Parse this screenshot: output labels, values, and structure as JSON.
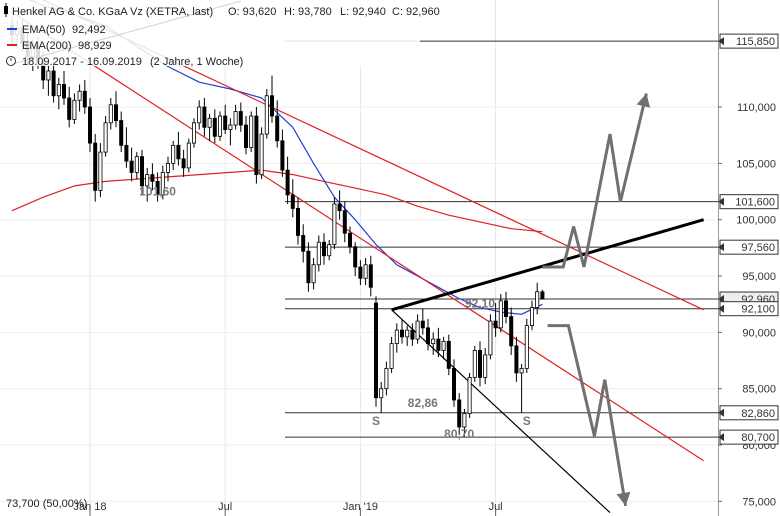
{
  "header": {
    "title": "Henkel AG & Co. KGaA Vz (XETRA, last)",
    "open": "O: 93,620",
    "high": "H: 93,780",
    "low": "L: 92,940",
    "close": "C: 92,960",
    "ema50_label": "EMA(50)",
    "ema50_value": "92,492",
    "ema200_label": "EMA(200)",
    "ema200_value": "98,929",
    "range_label": "18.09.2017 - 16.09.2019",
    "range_duration": "(2 Jahre, 1 Woche)"
  },
  "footer": {
    "scale_label": "73,700 (50,00%)"
  },
  "colors": {
    "ema50": "#1f3fd6",
    "ema200": "#e02020",
    "trend_red": "#e02020",
    "candle": "#000000",
    "projection": "#707070",
    "level_line": "#333333"
  },
  "chart_data": {
    "type": "candlestick",
    "title": "Henkel AG & Co. KGaA Vz (XETRA, last)",
    "ylim": [
      73.7,
      119.5
    ],
    "y_ticks": [
      {
        "value": 75,
        "label": "75,000"
      },
      {
        "value": 80,
        "label": "80,000"
      },
      {
        "value": 85,
        "label": "85,000"
      },
      {
        "value": 90,
        "label": "90,000"
      },
      {
        "value": 95,
        "label": "95,000"
      },
      {
        "value": 100,
        "label": "100,000"
      },
      {
        "value": 105,
        "label": "105,000"
      },
      {
        "value": 110,
        "label": "110,000"
      }
    ],
    "x_ticks": [
      {
        "week": 15,
        "label": "Jan 18"
      },
      {
        "week": 41,
        "label": "Jul"
      },
      {
        "week": 67,
        "label": "Jan '19"
      },
      {
        "week": 93,
        "label": "Jul"
      }
    ],
    "price_levels": [
      {
        "value": 115.85,
        "label": "115,850"
      },
      {
        "value": 101.6,
        "label": "101,600"
      },
      {
        "value": 97.56,
        "label": "97,560"
      },
      {
        "value": 92.96,
        "label": "92,960",
        "current": true
      },
      {
        "value": 92.1,
        "label": "92,100"
      },
      {
        "value": 82.86,
        "label": "82,860"
      },
      {
        "value": 80.7,
        "label": "80,700"
      }
    ],
    "annotations": [
      {
        "text": "101,60",
        "week": 28,
        "value": 101.6
      },
      {
        "text": "92,10",
        "week": 90,
        "value": 92.1
      },
      {
        "text": "82,86",
        "week": 79,
        "value": 82.86
      },
      {
        "text": "80,70",
        "week": 86,
        "value": 80.7
      },
      {
        "text": "S",
        "week": 70,
        "value": 82.86
      },
      {
        "text": "S",
        "week": 99,
        "value": 82.86
      }
    ],
    "candles": [
      {
        "o": 117.2,
        "h": 118.0,
        "l": 115.5,
        "c": 116.4
      },
      {
        "o": 116.4,
        "h": 117.6,
        "l": 115.2,
        "c": 117.0
      },
      {
        "o": 117.0,
        "h": 117.8,
        "l": 115.0,
        "c": 115.6
      },
      {
        "o": 115.6,
        "h": 116.6,
        "l": 113.8,
        "c": 114.5
      },
      {
        "o": 114.5,
        "h": 116.0,
        "l": 113.2,
        "c": 115.4
      },
      {
        "o": 115.4,
        "h": 116.2,
        "l": 113.4,
        "c": 113.9
      },
      {
        "o": 113.9,
        "h": 115.0,
        "l": 111.6,
        "c": 112.4
      },
      {
        "o": 112.4,
        "h": 113.8,
        "l": 111.0,
        "c": 113.2
      },
      {
        "o": 113.2,
        "h": 114.0,
        "l": 110.4,
        "c": 111.0
      },
      {
        "o": 111.0,
        "h": 112.6,
        "l": 109.8,
        "c": 112.0
      },
      {
        "o": 112.0,
        "h": 113.2,
        "l": 110.2,
        "c": 110.8
      },
      {
        "o": 110.8,
        "h": 111.8,
        "l": 108.2,
        "c": 108.9
      },
      {
        "o": 108.9,
        "h": 111.2,
        "l": 108.5,
        "c": 110.6
      },
      {
        "o": 110.6,
        "h": 112.0,
        "l": 109.6,
        "c": 111.4
      },
      {
        "o": 111.4,
        "h": 112.4,
        "l": 109.4,
        "c": 110.0
      },
      {
        "o": 110.0,
        "h": 110.8,
        "l": 106.0,
        "c": 106.8
      },
      {
        "o": 106.8,
        "h": 107.6,
        "l": 101.6,
        "c": 102.6
      },
      {
        "o": 102.6,
        "h": 106.8,
        "l": 102.0,
        "c": 106.0
      },
      {
        "o": 106.0,
        "h": 109.2,
        "l": 105.6,
        "c": 108.6
      },
      {
        "o": 108.6,
        "h": 110.8,
        "l": 108.0,
        "c": 110.2
      },
      {
        "o": 110.2,
        "h": 111.4,
        "l": 108.2,
        "c": 108.8
      },
      {
        "o": 108.8,
        "h": 109.6,
        "l": 106.0,
        "c": 106.6
      },
      {
        "o": 106.6,
        "h": 108.2,
        "l": 104.6,
        "c": 105.2
      },
      {
        "o": 105.2,
        "h": 106.4,
        "l": 103.4,
        "c": 104.2
      },
      {
        "o": 104.2,
        "h": 106.0,
        "l": 103.6,
        "c": 105.6
      },
      {
        "o": 105.6,
        "h": 106.2,
        "l": 102.2,
        "c": 103.0
      },
      {
        "o": 103.0,
        "h": 104.6,
        "l": 101.6,
        "c": 104.0
      },
      {
        "o": 104.0,
        "h": 105.0,
        "l": 102.6,
        "c": 103.4
      },
      {
        "o": 103.4,
        "h": 104.2,
        "l": 101.6,
        "c": 102.2
      },
      {
        "o": 102.2,
        "h": 104.8,
        "l": 101.8,
        "c": 104.2
      },
      {
        "o": 104.2,
        "h": 105.6,
        "l": 103.4,
        "c": 105.0
      },
      {
        "o": 105.0,
        "h": 107.0,
        "l": 104.4,
        "c": 106.6
      },
      {
        "o": 106.6,
        "h": 107.8,
        "l": 104.8,
        "c": 105.4
      },
      {
        "o": 105.4,
        "h": 106.2,
        "l": 103.8,
        "c": 104.6
      },
      {
        "o": 104.6,
        "h": 107.2,
        "l": 104.2,
        "c": 106.8
      },
      {
        "o": 106.8,
        "h": 109.0,
        "l": 106.4,
        "c": 108.6
      },
      {
        "o": 108.6,
        "h": 110.6,
        "l": 108.0,
        "c": 110.0
      },
      {
        "o": 110.0,
        "h": 110.8,
        "l": 107.4,
        "c": 108.2
      },
      {
        "o": 108.2,
        "h": 109.4,
        "l": 107.0,
        "c": 109.0
      },
      {
        "o": 109.0,
        "h": 109.8,
        "l": 106.8,
        "c": 107.4
      },
      {
        "o": 107.4,
        "h": 109.6,
        "l": 107.0,
        "c": 109.2
      },
      {
        "o": 109.2,
        "h": 110.2,
        "l": 107.6,
        "c": 108.0
      },
      {
        "o": 108.0,
        "h": 109.0,
        "l": 106.6,
        "c": 108.4
      },
      {
        "o": 108.4,
        "h": 110.2,
        "l": 108.0,
        "c": 109.6
      },
      {
        "o": 109.6,
        "h": 110.4,
        "l": 107.8,
        "c": 108.4
      },
      {
        "o": 108.4,
        "h": 109.2,
        "l": 105.8,
        "c": 106.4
      },
      {
        "o": 106.4,
        "h": 109.6,
        "l": 106.0,
        "c": 109.2
      },
      {
        "o": 109.2,
        "h": 110.0,
        "l": 103.2,
        "c": 104.0
      },
      {
        "o": 104.0,
        "h": 108.2,
        "l": 103.6,
        "c": 107.6
      },
      {
        "o": 107.6,
        "h": 111.6,
        "l": 107.2,
        "c": 111.0
      },
      {
        "o": 111.0,
        "h": 112.8,
        "l": 108.6,
        "c": 109.2
      },
      {
        "o": 109.2,
        "h": 110.6,
        "l": 106.4,
        "c": 107.0
      },
      {
        "o": 107.0,
        "h": 108.0,
        "l": 103.8,
        "c": 104.4
      },
      {
        "o": 104.4,
        "h": 105.6,
        "l": 101.4,
        "c": 102.2
      },
      {
        "o": 102.2,
        "h": 103.6,
        "l": 100.2,
        "c": 101.0
      },
      {
        "o": 101.0,
        "h": 102.0,
        "l": 97.8,
        "c": 98.6
      },
      {
        "o": 98.6,
        "h": 99.6,
        "l": 96.2,
        "c": 97.2
      },
      {
        "o": 97.2,
        "h": 98.0,
        "l": 93.6,
        "c": 94.4
      },
      {
        "o": 94.4,
        "h": 96.6,
        "l": 93.8,
        "c": 96.0
      },
      {
        "o": 96.0,
        "h": 98.6,
        "l": 95.4,
        "c": 98.0
      },
      {
        "o": 98.0,
        "h": 98.8,
        "l": 96.0,
        "c": 96.8
      },
      {
        "o": 96.8,
        "h": 98.2,
        "l": 96.4,
        "c": 97.8
      },
      {
        "o": 97.8,
        "h": 102.0,
        "l": 97.4,
        "c": 101.4
      },
      {
        "o": 101.4,
        "h": 102.6,
        "l": 100.0,
        "c": 100.8
      },
      {
        "o": 100.8,
        "h": 101.6,
        "l": 98.0,
        "c": 98.8
      },
      {
        "o": 98.8,
        "h": 99.4,
        "l": 97.0,
        "c": 97.6
      },
      {
        "o": 97.6,
        "h": 98.0,
        "l": 95.0,
        "c": 95.8
      },
      {
        "o": 95.8,
        "h": 96.4,
        "l": 94.2,
        "c": 94.8
      },
      {
        "o": 94.8,
        "h": 96.6,
        "l": 94.2,
        "c": 96.0
      },
      {
        "o": 96.0,
        "h": 96.8,
        "l": 93.2,
        "c": 94.0
      },
      {
        "o": 92.6,
        "h": 93.2,
        "l": 83.4,
        "c": 84.2
      },
      {
        "o": 84.2,
        "h": 85.6,
        "l": 82.86,
        "c": 85.0
      },
      {
        "o": 85.0,
        "h": 87.4,
        "l": 84.4,
        "c": 86.8
      },
      {
        "o": 86.8,
        "h": 89.6,
        "l": 86.4,
        "c": 89.0
      },
      {
        "o": 89.0,
        "h": 90.8,
        "l": 88.2,
        "c": 90.2
      },
      {
        "o": 90.2,
        "h": 91.2,
        "l": 89.0,
        "c": 89.6
      },
      {
        "o": 89.6,
        "h": 90.6,
        "l": 88.8,
        "c": 90.2
      },
      {
        "o": 90.2,
        "h": 90.8,
        "l": 88.8,
        "c": 89.4
      },
      {
        "o": 89.4,
        "h": 91.6,
        "l": 89.0,
        "c": 91.0
      },
      {
        "o": 91.0,
        "h": 92.1,
        "l": 89.8,
        "c": 90.4
      },
      {
        "o": 90.4,
        "h": 91.2,
        "l": 88.4,
        "c": 89.0
      },
      {
        "o": 89.0,
        "h": 90.0,
        "l": 88.0,
        "c": 89.4
      },
      {
        "o": 89.4,
        "h": 90.4,
        "l": 87.8,
        "c": 88.4
      },
      {
        "o": 88.4,
        "h": 89.6,
        "l": 87.6,
        "c": 89.2
      },
      {
        "o": 89.2,
        "h": 89.8,
        "l": 86.2,
        "c": 86.8
      },
      {
        "o": 86.8,
        "h": 87.6,
        "l": 83.4,
        "c": 84.0
      },
      {
        "o": 84.0,
        "h": 84.6,
        "l": 80.9,
        "c": 81.6
      },
      {
        "o": 81.6,
        "h": 83.2,
        "l": 80.7,
        "c": 82.8
      },
      {
        "o": 82.8,
        "h": 86.4,
        "l": 82.4,
        "c": 86.0
      },
      {
        "o": 86.0,
        "h": 88.8,
        "l": 85.6,
        "c": 88.4
      },
      {
        "o": 88.4,
        "h": 89.2,
        "l": 85.2,
        "c": 86.0
      },
      {
        "o": 86.0,
        "h": 88.6,
        "l": 85.4,
        "c": 88.0
      },
      {
        "o": 88.0,
        "h": 91.6,
        "l": 87.6,
        "c": 91.0
      },
      {
        "o": 91.0,
        "h": 92.6,
        "l": 89.6,
        "c": 90.4
      },
      {
        "o": 90.4,
        "h": 93.4,
        "l": 90.0,
        "c": 92.8
      },
      {
        "o": 92.8,
        "h": 93.6,
        "l": 90.8,
        "c": 91.4
      },
      {
        "o": 91.4,
        "h": 92.2,
        "l": 88.0,
        "c": 88.8
      },
      {
        "o": 88.8,
        "h": 89.6,
        "l": 85.6,
        "c": 86.4
      },
      {
        "o": 86.4,
        "h": 87.2,
        "l": 82.86,
        "c": 86.8
      },
      {
        "o": 86.8,
        "h": 91.2,
        "l": 86.4,
        "c": 90.6
      },
      {
        "o": 90.6,
        "h": 92.8,
        "l": 90.2,
        "c": 92.2
      },
      {
        "o": 92.2,
        "h": 94.4,
        "l": 91.6,
        "c": 93.6
      },
      {
        "o": 93.6,
        "h": 93.78,
        "l": 92.94,
        "c": 92.96
      }
    ],
    "ema50": [
      [
        0,
        120.2
      ],
      [
        6,
        119.0
      ],
      [
        12,
        118.2
      ],
      [
        18,
        117.2
      ],
      [
        24,
        115.4
      ],
      [
        30,
        113.6
      ],
      [
        36,
        112.2
      ],
      [
        42,
        111.6
      ],
      [
        48,
        110.8
      ],
      [
        54,
        108.2
      ],
      [
        58,
        105.0
      ],
      [
        62,
        102.0
      ],
      [
        66,
        100.0
      ],
      [
        70,
        97.8
      ],
      [
        74,
        96.0
      ],
      [
        78,
        95.0
      ],
      [
        82,
        94.0
      ],
      [
        86,
        93.0
      ],
      [
        90,
        92.2
      ],
      [
        94,
        91.8
      ],
      [
        98,
        91.6
      ],
      [
        102,
        92.49
      ]
    ],
    "ema200": [
      [
        0,
        100.8
      ],
      [
        6,
        102.0
      ],
      [
        12,
        103.0
      ],
      [
        18,
        103.4
      ],
      [
        24,
        103.6
      ],
      [
        30,
        103.8
      ],
      [
        36,
        104.0
      ],
      [
        42,
        104.2
      ],
      [
        48,
        104.4
      ],
      [
        54,
        104.0
      ],
      [
        60,
        103.4
      ],
      [
        66,
        102.8
      ],
      [
        72,
        102.2
      ],
      [
        78,
        101.2
      ],
      [
        84,
        100.4
      ],
      [
        90,
        99.8
      ],
      [
        96,
        99.2
      ],
      [
        102,
        98.93
      ]
    ],
    "trendlines": [
      {
        "name": "red-trendline-steep",
        "color": "#e02020",
        "from": [
          0,
          118.4
        ],
        "to": [
          133,
          78.6
        ]
      },
      {
        "name": "red-trendline-shallow",
        "color": "#e02020",
        "from": [
          0,
          120.8
        ],
        "to": [
          133,
          92.0
        ]
      },
      {
        "name": "black-support-uptrend",
        "color": "#000000",
        "from": [
          73,
          92.0
        ],
        "to": [
          133,
          100.0
        ]
      },
      {
        "name": "black-resistance-upper",
        "color": "#000000",
        "from": [
          0,
          113.8
        ],
        "to": [
          44,
          119.4
        ]
      },
      {
        "name": "black-downtrend-line",
        "color": "#000000",
        "from": [
          73,
          92.0
        ],
        "to": [
          115,
          74.0
        ]
      }
    ],
    "projections": [
      {
        "name": "bullish-scenario-arrow",
        "points": [
          [
            102,
            95.8
          ],
          [
            104,
            95.8
          ],
          [
            106,
            95.8
          ],
          [
            108,
            99.4
          ],
          [
            110,
            95.8
          ],
          [
            115,
            107.6
          ],
          [
            117,
            101.6
          ],
          [
            122,
            111.2
          ]
        ]
      },
      {
        "name": "bearish-scenario-arrow",
        "points": [
          [
            103,
            90.6
          ],
          [
            107,
            90.6
          ],
          [
            112,
            80.8
          ],
          [
            114,
            85.8
          ],
          [
            118,
            74.6
          ]
        ]
      }
    ]
  }
}
